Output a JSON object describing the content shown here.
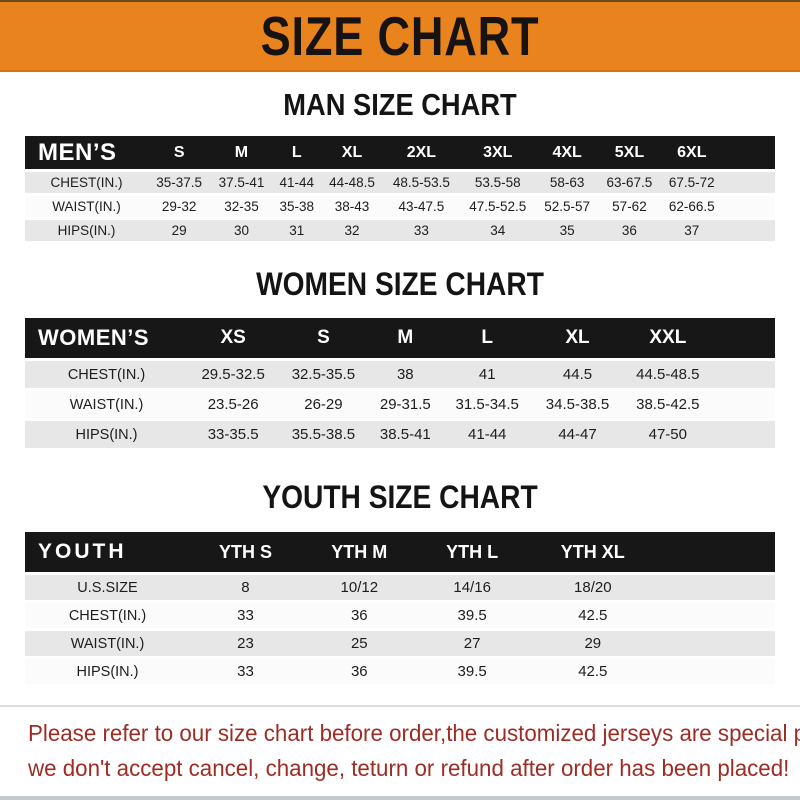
{
  "banner": {
    "title": "SIZE CHART",
    "bg_color": "#E9831E"
  },
  "sections": [
    {
      "id": "men",
      "heading": "MAN SIZE CHART",
      "table": {
        "label": "MEN’S",
        "columns": [
          "S",
          "M",
          "L",
          "XL",
          "2XL",
          "3XL",
          "4XL",
          "5XL",
          "6XL"
        ],
        "rows": [
          {
            "label": "CHEST(IN.)",
            "values": [
              "35-37.5",
              "37.5-41",
              "41-44",
              "44-48.5",
              "48.5-53.5",
              "53.5-58",
              "58-63",
              "63-67.5",
              "67.5-72"
            ]
          },
          {
            "label": "WAIST(IN.)",
            "values": [
              "29-32",
              "32-35",
              "35-38",
              "38-43",
              "43-47.5",
              "47.5-52.5",
              "52.5-57",
              "57-62",
              "62-66.5"
            ]
          },
          {
            "label": "HIPS(IN.)",
            "values": [
              "29",
              "30",
              "31",
              "32",
              "33",
              "34",
              "35",
              "36",
              "37"
            ]
          }
        ]
      }
    },
    {
      "id": "women",
      "heading": "WOMEN SIZE CHART",
      "table": {
        "label": "WOMEN’S",
        "columns": [
          "XS",
          "S",
          "M",
          "L",
          "XL",
          "XXL"
        ],
        "rows": [
          {
            "label": "CHEST(IN.)",
            "values": [
              "29.5-32.5",
              "32.5-35.5",
              "38",
              "41",
              "44.5",
              "44.5-48.5"
            ]
          },
          {
            "label": "WAIST(IN.)",
            "values": [
              "23.5-26",
              "26-29",
              "29-31.5",
              "31.5-34.5",
              "34.5-38.5",
              "38.5-42.5"
            ]
          },
          {
            "label": "HIPS(IN.)",
            "values": [
              "33-35.5",
              "35.5-38.5",
              "38.5-41",
              "41-44",
              "44-47",
              "47-50"
            ]
          }
        ]
      }
    },
    {
      "id": "youth",
      "heading": "YOUTH SIZE CHART",
      "table": {
        "label": "YOUTH",
        "columns": [
          "YTH S",
          "YTH M",
          "YTH L",
          "YTH XL"
        ],
        "rows": [
          {
            "label": "U.S.SIZE",
            "values": [
              "8",
              "10/12",
              "14/16",
              "18/20"
            ]
          },
          {
            "label": "CHEST(IN.)",
            "values": [
              "33",
              "36",
              "39.5",
              "42.5"
            ]
          },
          {
            "label": "WAIST(IN.)",
            "values": [
              "23",
              "25",
              "27",
              "29"
            ]
          },
          {
            "label": "HIPS(IN.)",
            "values": [
              "33",
              "36",
              "39.5",
              "42.5"
            ]
          }
        ]
      }
    }
  ],
  "disclaimer": {
    "text_color": "#9F2C24",
    "lines": [
      "Please refer to our size chart before order,the customized jerseys are special products,",
      "we don't accept cancel, change, teturn or refund after order has been placed!"
    ]
  }
}
